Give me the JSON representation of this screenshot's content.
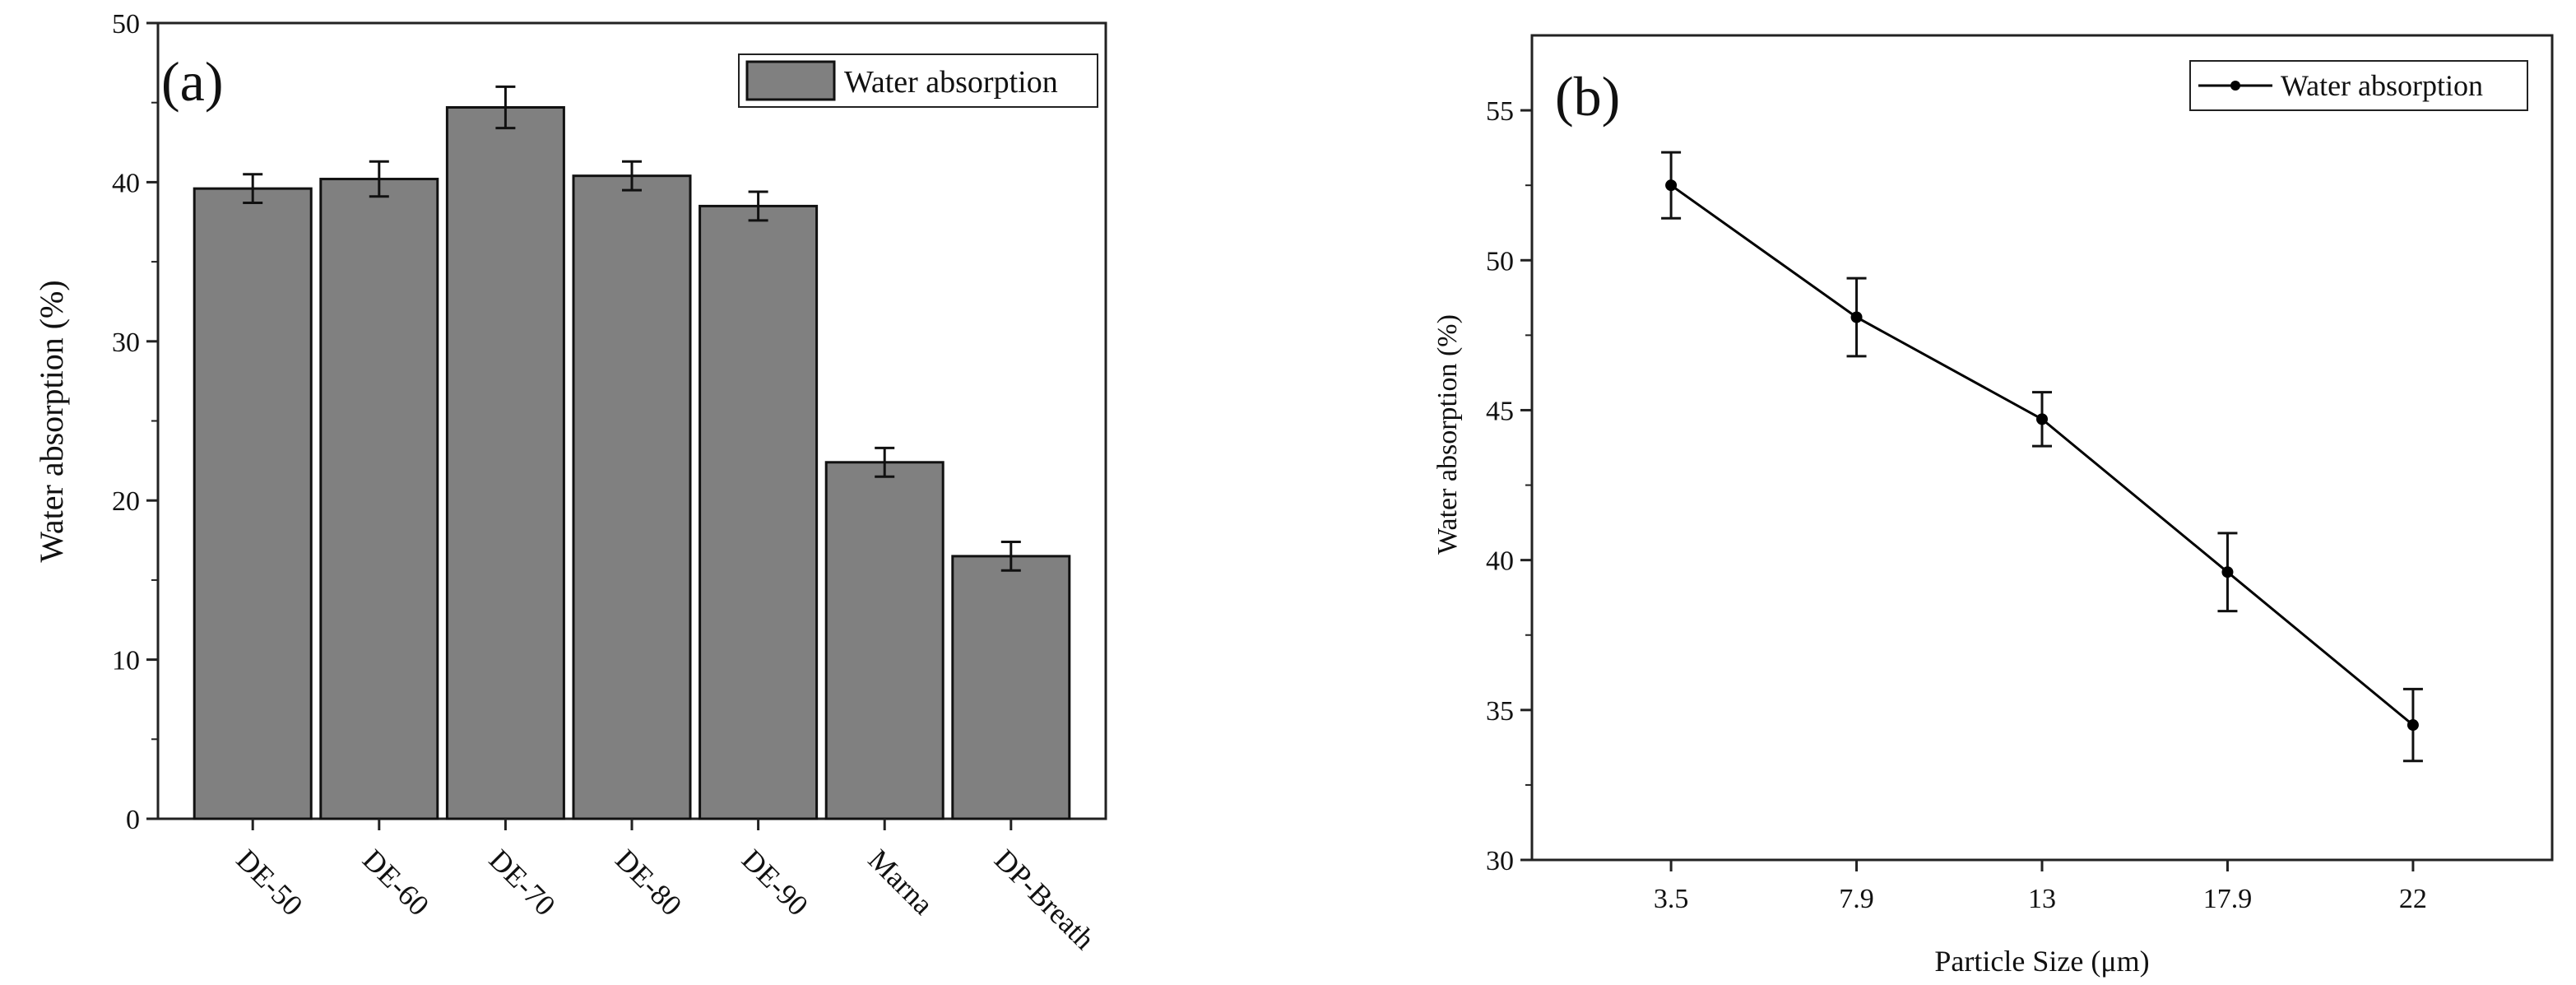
{
  "chart_data": [
    {
      "type": "bar",
      "panel_label": "(a)",
      "categories": [
        "DE-50",
        "DE-60",
        "DE-70",
        "DE-80",
        "DE-90",
        "Marna",
        "DP-Breath"
      ],
      "series": [
        {
          "name": "Water absorption",
          "values": [
            39.6,
            40.2,
            44.7,
            40.4,
            38.5,
            22.4,
            16.5
          ],
          "errors": [
            0.9,
            1.1,
            1.3,
            0.9,
            0.9,
            0.9,
            0.9
          ],
          "color": "#808080"
        }
      ],
      "ylabel": "Water absorption (%)",
      "xlabel": "",
      "ylim": [
        0,
        50
      ],
      "yticks": [
        "0",
        "10",
        "20",
        "30",
        "40",
        "50"
      ],
      "legend": "top-right",
      "grid": false
    },
    {
      "type": "line",
      "panel_label": "(b)",
      "categories": [
        "3.5",
        "7.9",
        "13",
        "17.9",
        "22"
      ],
      "series": [
        {
          "name": "Water absorption",
          "values": [
            52.5,
            48.1,
            44.7,
            39.6,
            34.5
          ],
          "errors": [
            1.1,
            1.3,
            0.9,
            1.3,
            1.2
          ],
          "color": "#000000"
        }
      ],
      "xlabel": "Particle Size (μm)",
      "ylabel": "Water absorption (%)",
      "ylim": [
        30,
        57.5
      ],
      "yticks": [
        "30",
        "35",
        "40",
        "45",
        "50",
        "55"
      ],
      "legend": "top-right",
      "grid": false
    }
  ]
}
